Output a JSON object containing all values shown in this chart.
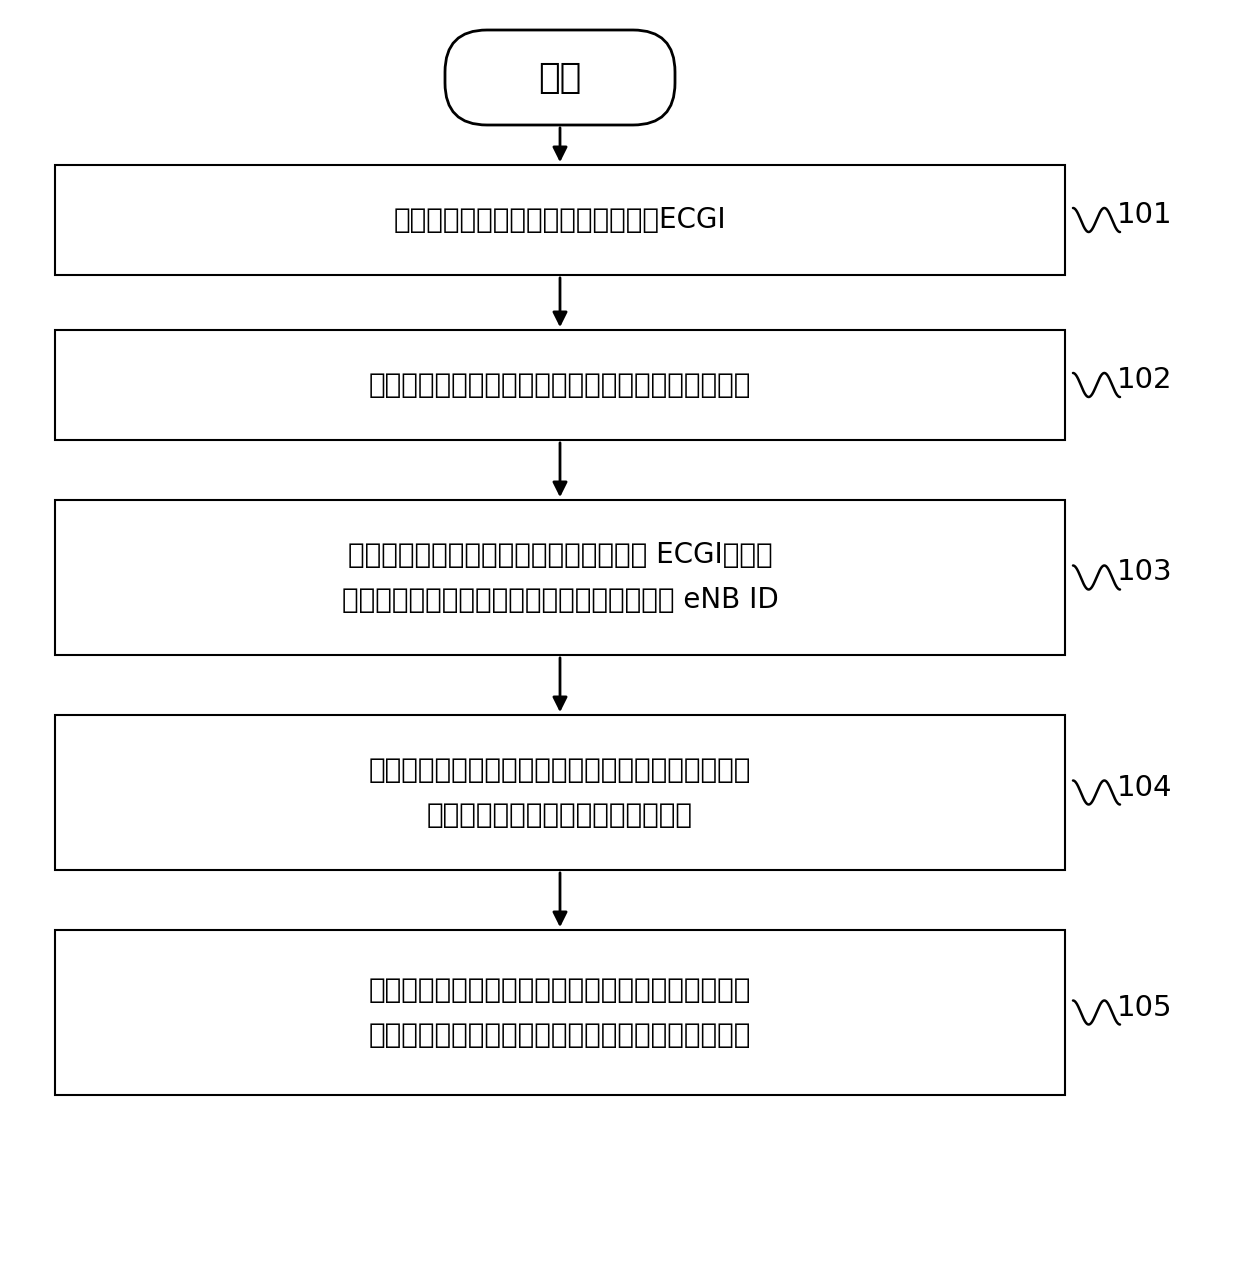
{
  "bg_color": "#ffffff",
  "border_color": "#000000",
  "text_color": "#000000",
  "start_label": "开始",
  "steps": [
    {
      "id": "101",
      "lines": [
        "源基站接收到终端侧发送的邻小区的ECGI"
      ]
    },
    {
      "id": "102",
      "lines": [
        "源基站判断是否被配置为开启灵活基站标识识别模式"
      ]
    },
    {
      "id": "103",
      "lines": [
        "如果是，则源基站根据预设的配置信息从 ECGI中提取",
        "出由基本基站标识和扩展基站标识组成的第一 eNB ID"
      ]
    },
    {
      "id": "104",
      "lines": [
        "源基站向核心网发送携带有基本基站标识、扩展基站",
        "标识和识别请求信息的地址识别消息"
      ]
    },
    {
      "id": "105",
      "lines": [
        "核心网向源基站反馈地址识别结果，源基站基于地址",
        "识别结果确定并保存邻小区所属的邻基站的基站标识"
      ]
    }
  ]
}
